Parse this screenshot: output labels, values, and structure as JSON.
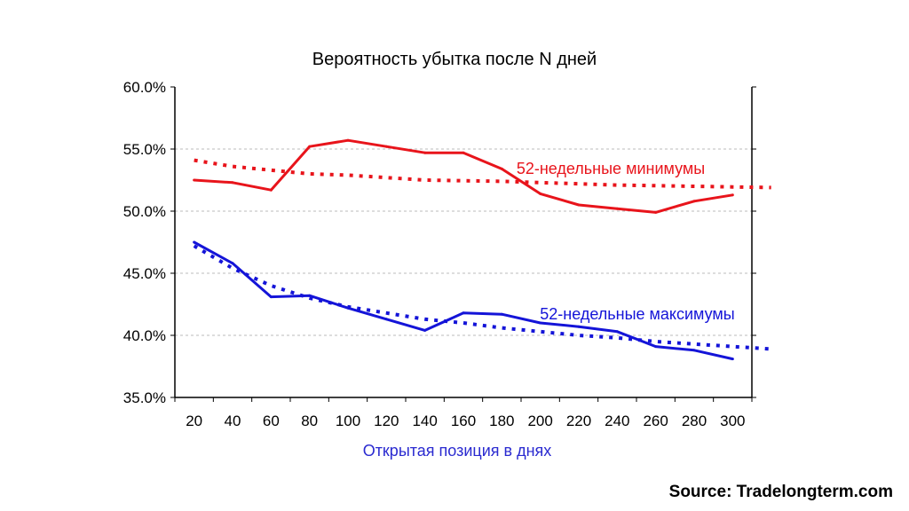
{
  "chart_data": {
    "type": "line",
    "title": "Вероятность убытка после N дней",
    "xlabel": "Открытая позиция в днях",
    "ylabel": "",
    "categories": [
      "20",
      "40",
      "60",
      "80",
      "100",
      "120",
      "140",
      "160",
      "180",
      "200",
      "220",
      "240",
      "260",
      "280",
      "300"
    ],
    "ylim": [
      35,
      60
    ],
    "yticks": [
      "35.0%",
      "40.0%",
      "45.0%",
      "50.0%",
      "55.0%",
      "60.0%"
    ],
    "grid": true,
    "series": [
      {
        "name": "52-недельные минимумы",
        "color": "#e8141b",
        "values": [
          52.5,
          52.3,
          51.7,
          55.2,
          55.7,
          55.2,
          54.7,
          54.7,
          53.4,
          51.4,
          50.5,
          50.2,
          49.9,
          50.8,
          51.3
        ],
        "trend": [
          54.1,
          53.6,
          53.3,
          53.0,
          52.9,
          52.7,
          52.5,
          52.45,
          52.4,
          52.3,
          52.2,
          52.1,
          52.05,
          52.0,
          51.95,
          51.9
        ]
      },
      {
        "name": "52-недельные максимумы",
        "color": "#1414d8",
        "values": [
          47.5,
          45.8,
          43.1,
          43.2,
          42.2,
          41.3,
          40.4,
          41.8,
          41.7,
          41.0,
          40.7,
          40.3,
          39.1,
          38.8,
          38.1
        ],
        "trend": [
          47.2,
          45.4,
          44.0,
          43.0,
          42.3,
          41.8,
          41.3,
          41.0,
          40.6,
          40.3,
          40.0,
          39.8,
          39.5,
          39.3,
          39.1,
          38.9
        ]
      }
    ]
  },
  "source": "Source: Tradelongterm.com"
}
